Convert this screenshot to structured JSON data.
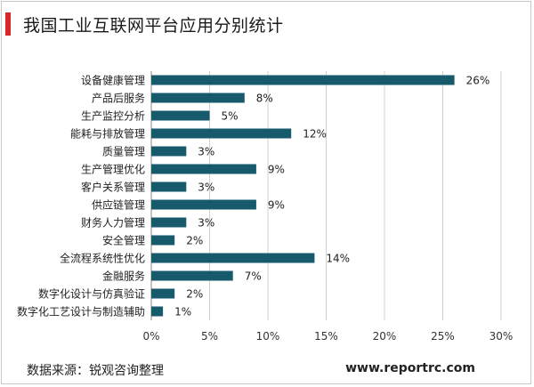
{
  "header": {
    "title": "我国工业互联网平台应用分别统计"
  },
  "footer": {
    "source": "数据来源：锐观咨询整理",
    "website": "www.reportrc.com"
  },
  "colors": {
    "bar": "#175a6b",
    "accent": "#d9262b",
    "grid": "#d0d0d0"
  },
  "chart_data": {
    "type": "bar",
    "orientation": "horizontal",
    "title": "我国工业互联网平台应用分别统计",
    "categories": [
      "设备健康管理",
      "产品后服务",
      "生产监控分析",
      "能耗与排放管理",
      "质量管理",
      "生产管理优化",
      "客户关系管理",
      "供应链管理",
      "财务人力管理",
      "安全管理",
      "全流程系统性优化",
      "金融服务",
      "数字化设计与仿真验证",
      "数字化工艺设计与制造辅助"
    ],
    "values": [
      26,
      8,
      5,
      12,
      3,
      9,
      3,
      9,
      3,
      2,
      14,
      7,
      2,
      1
    ],
    "value_labels": [
      "26%",
      "8%",
      "5%",
      "12%",
      "3%",
      "9%",
      "3%",
      "9%",
      "3%",
      "2%",
      "14%",
      "7%",
      "2%",
      "1%"
    ],
    "xlim": [
      0,
      30
    ],
    "xticks": [
      "0%",
      "5%",
      "10%",
      "15%",
      "20%",
      "25%",
      "30%"
    ],
    "grid": true,
    "xlabel": "",
    "ylabel": ""
  }
}
